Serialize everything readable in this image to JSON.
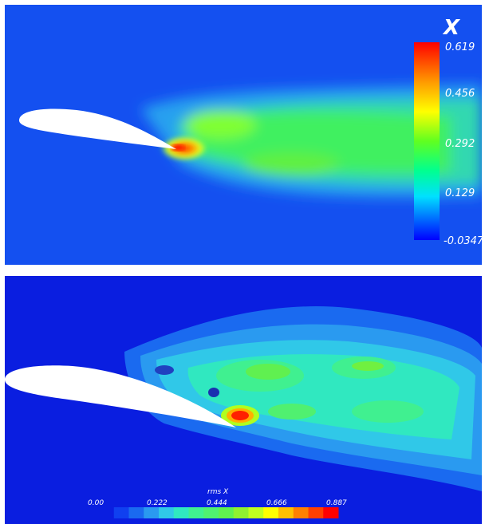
{
  "top_panel": {
    "colorbar": {
      "title": "X",
      "ticks": [
        "0.619",
        "0.456",
        "0.292",
        "0.129",
        "-0.0347"
      ]
    }
  },
  "bottom_panel": {
    "colorbar": {
      "title": "rms X",
      "ticks": [
        "0.00",
        "0.222",
        "0.444",
        "0.666",
        "0.887"
      ]
    }
  },
  "colors": {
    "background_field": "#1450f0",
    "low": "#0000ff",
    "high": "#ff0000",
    "airfoil": "#ffffff"
  }
}
